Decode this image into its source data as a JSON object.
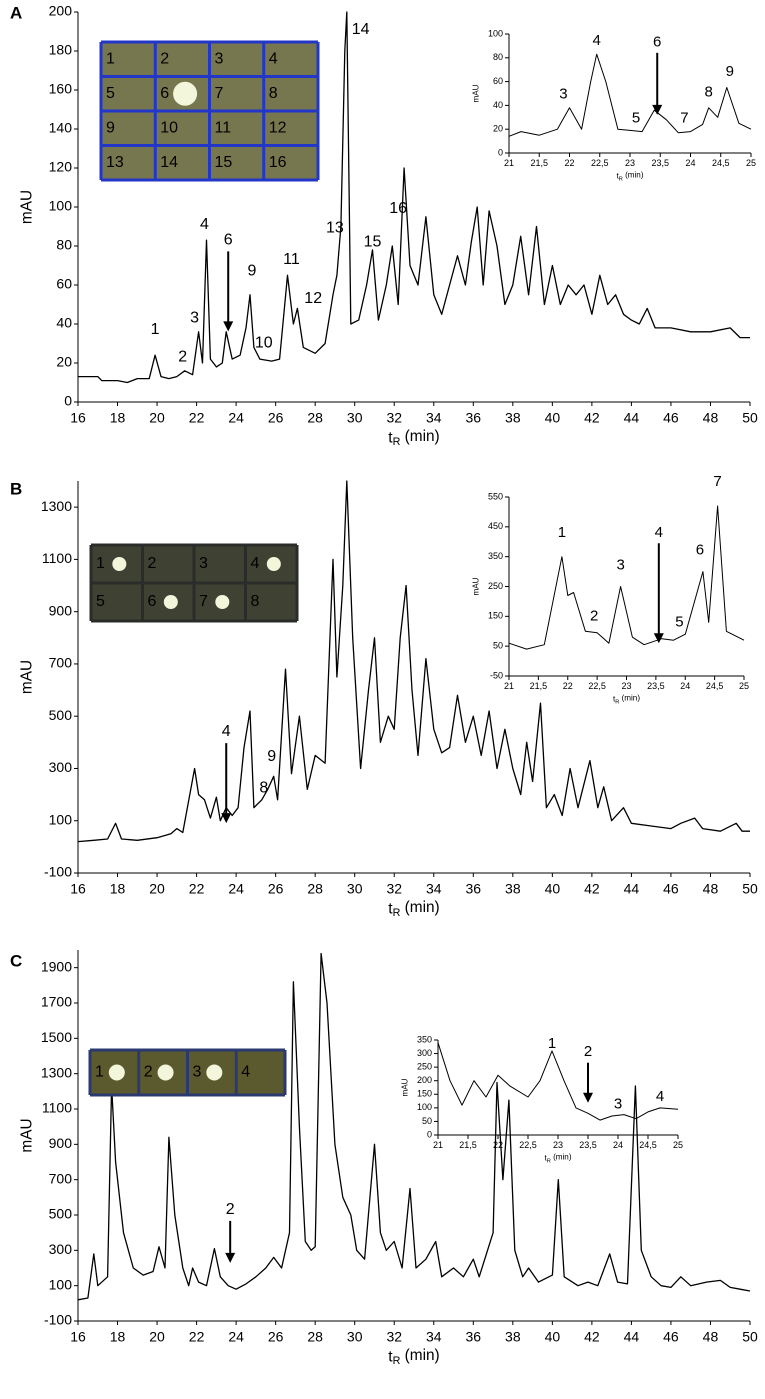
{
  "chart_data": [
    {
      "type": "line",
      "panel": "A",
      "ylabel": "mAU",
      "xlabel": [
        "t",
        "R",
        " (min)"
      ],
      "xlim": [
        16,
        50
      ],
      "ylim": [
        0,
        200
      ],
      "xticks": [
        16,
        18,
        20,
        22,
        24,
        26,
        28,
        30,
        32,
        34,
        36,
        38,
        40,
        42,
        44,
        46,
        48,
        50
      ],
      "yticks": [
        0,
        20,
        40,
        60,
        80,
        100,
        120,
        140,
        160,
        180,
        200
      ],
      "color": "#000000",
      "x": [
        16,
        17,
        17.2,
        18,
        18.5,
        19,
        19.6,
        19.9,
        20.2,
        20.6,
        21,
        21.4,
        21.8,
        22.1,
        22.3,
        22.5,
        22.7,
        23,
        23.3,
        23.5,
        23.8,
        24.2,
        24.5,
        24.7,
        24.9,
        25.2,
        25.8,
        26.2,
        26.6,
        26.9,
        27.1,
        27.4,
        28,
        28.5,
        28.9,
        29.1,
        29.3,
        29.5,
        29.6,
        29.8,
        30.2,
        30.6,
        30.9,
        31.2,
        31.6,
        31.9,
        32.2,
        32.5,
        32.8,
        33.2,
        33.6,
        34,
        34.4,
        34.8,
        35.2,
        35.6,
        35.9,
        36.2,
        36.5,
        36.8,
        37.2,
        37.6,
        38,
        38.4,
        38.8,
        39.2,
        39.6,
        40,
        40.4,
        40.8,
        41.2,
        41.6,
        42,
        42.4,
        42.8,
        43.2,
        43.6,
        44,
        44.4,
        44.8,
        45.2,
        46,
        47,
        48,
        49,
        49.5,
        50
      ],
      "values": [
        13,
        13,
        11,
        11,
        10,
        12,
        12,
        24,
        13,
        12,
        13,
        16,
        14,
        36,
        20,
        83,
        22,
        18,
        20,
        36,
        22,
        24,
        38,
        55,
        28,
        22,
        21,
        22,
        65,
        40,
        48,
        28,
        25,
        30,
        55,
        65,
        90,
        180,
        200,
        40,
        42,
        60,
        78,
        42,
        60,
        80,
        50,
        120,
        70,
        60,
        95,
        55,
        45,
        60,
        75,
        60,
        82,
        100,
        60,
        98,
        80,
        50,
        60,
        85,
        55,
        90,
        50,
        70,
        50,
        60,
        55,
        60,
        45,
        65,
        50,
        55,
        45,
        42,
        40,
        48,
        38,
        38,
        36,
        36,
        38,
        33,
        33
      ],
      "annotations": [
        {
          "text": "1",
          "x": 19.9,
          "y": 37
        },
        {
          "text": "2",
          "x": 21.3,
          "y": 23
        },
        {
          "text": "3",
          "x": 21.9,
          "y": 43
        },
        {
          "text": "4",
          "x": 22.4,
          "y": 91
        },
        {
          "text": "6",
          "x": 23.6,
          "y": 83,
          "arrow": true
        },
        {
          "text": "9",
          "x": 24.8,
          "y": 67
        },
        {
          "text": "10",
          "x": 25.4,
          "y": 30
        },
        {
          "text": "11",
          "x": 26.8,
          "y": 73
        },
        {
          "text": "12",
          "x": 27.9,
          "y": 53
        },
        {
          "text": "13",
          "x": 29,
          "y": 89
        },
        {
          "text": "14",
          "x": 30.3,
          "y": 191
        },
        {
          "text": "15",
          "x": 30.9,
          "y": 82
        },
        {
          "text": "16",
          "x": 32.2,
          "y": 99
        }
      ],
      "plate_labels": [
        "1",
        "2",
        "3",
        "4",
        "5",
        "6",
        "7",
        "8",
        "9",
        "10",
        "11",
        "12",
        "13",
        "14",
        "15",
        "16"
      ],
      "inset": {
        "type": "line",
        "ylabel": "mAU",
        "xlabel": [
          "t",
          "R",
          " (min)"
        ],
        "xlim": [
          21,
          25
        ],
        "ylim": [
          0,
          100
        ],
        "xticks": [
          21,
          {
            "value": 21.5,
            "label": "21,5"
          },
          22,
          {
            "value": 22.5,
            "label": "22,5"
          },
          23,
          {
            "value": 23.5,
            "label": "23,5"
          },
          24,
          {
            "value": 24.5,
            "label": "24,5"
          },
          25
        ],
        "yticks": [
          0,
          20,
          40,
          60,
          80,
          100
        ],
        "color": "#000000",
        "x": [
          21,
          21.2,
          21.5,
          21.8,
          22,
          22.2,
          22.35,
          22.45,
          22.6,
          22.8,
          23,
          23.2,
          23.4,
          23.6,
          23.8,
          24,
          24.2,
          24.3,
          24.45,
          24.6,
          24.8,
          25
        ],
        "values": [
          14,
          18,
          15,
          20,
          38,
          20,
          60,
          83,
          60,
          20,
          19,
          18,
          36,
          28,
          17,
          18,
          24,
          38,
          30,
          55,
          25,
          20
        ],
        "annotations": [
          {
            "text": "3",
            "x": 21.9,
            "y": 49
          },
          {
            "text": "4",
            "x": 22.45,
            "y": 94
          },
          {
            "text": "5",
            "x": 23.1,
            "y": 29
          },
          {
            "text": "6",
            "x": 23.45,
            "y": 93,
            "arrow": true
          },
          {
            "text": "7",
            "x": 23.9,
            "y": 29
          },
          {
            "text": "8",
            "x": 24.3,
            "y": 51
          },
          {
            "text": "9",
            "x": 24.65,
            "y": 68
          }
        ]
      }
    },
    {
      "type": "line",
      "panel": "B",
      "ylabel": "mAU",
      "xlabel": [
        "t",
        "R",
        " (min)"
      ],
      "xlim": [
        16,
        50
      ],
      "ylim": [
        -100,
        1400
      ],
      "xticks": [
        16,
        18,
        20,
        22,
        24,
        26,
        28,
        30,
        32,
        34,
        36,
        38,
        40,
        42,
        44,
        46,
        48,
        50
      ],
      "yticks": [
        -100,
        100,
        300,
        500,
        700,
        900,
        1100,
        1300
      ],
      "color": "#000000",
      "x": [
        16,
        16.8,
        17.5,
        17.9,
        18.2,
        19,
        20,
        20.7,
        21,
        21.3,
        21.9,
        22.1,
        22.4,
        22.7,
        23,
        23.2,
        23.5,
        23.8,
        24.1,
        24.4,
        24.7,
        24.9,
        25.3,
        25.6,
        25.9,
        26.1,
        26.5,
        26.8,
        27.2,
        27.6,
        28,
        28.5,
        28.9,
        29.1,
        29.4,
        29.6,
        29.9,
        30.3,
        30.7,
        31,
        31.3,
        31.7,
        32,
        32.3,
        32.6,
        32.9,
        33.2,
        33.6,
        34,
        34.4,
        34.8,
        35.2,
        35.6,
        36,
        36.4,
        36.8,
        37.2,
        37.6,
        38,
        38.4,
        38.7,
        39,
        39.4,
        39.7,
        40.1,
        40.5,
        40.9,
        41.3,
        41.9,
        42.3,
        42.6,
        43,
        43.6,
        44,
        45,
        46,
        46.5,
        47.2,
        47.6,
        48.5,
        49.3,
        49.6,
        50
      ],
      "values": [
        20,
        25,
        30,
        90,
        30,
        25,
        35,
        50,
        70,
        55,
        300,
        200,
        180,
        110,
        190,
        100,
        150,
        120,
        150,
        380,
        520,
        150,
        180,
        220,
        270,
        180,
        680,
        280,
        500,
        220,
        350,
        320,
        1100,
        650,
        1000,
        1400,
        800,
        300,
        600,
        800,
        400,
        500,
        450,
        800,
        1000,
        600,
        350,
        720,
        450,
        360,
        380,
        580,
        400,
        500,
        350,
        520,
        300,
        450,
        300,
        200,
        400,
        250,
        550,
        150,
        200,
        120,
        300,
        150,
        330,
        150,
        230,
        100,
        150,
        90,
        80,
        70,
        90,
        110,
        70,
        60,
        90,
        60,
        60
      ],
      "annotations": [
        {
          "text": "4",
          "x": 23.5,
          "y": 440,
          "arrow": true
        },
        {
          "text": "8",
          "x": 25.4,
          "y": 225
        },
        {
          "text": "9",
          "x": 25.8,
          "y": 345
        }
      ],
      "plate_labels": [
        "1",
        "2",
        "3",
        "4",
        "5",
        "6",
        "7",
        "8"
      ],
      "inset": {
        "type": "line",
        "ylabel": "mAU",
        "xlabel": [
          "t",
          "R",
          " (min)"
        ],
        "xlim": [
          21,
          25
        ],
        "ylim": [
          -50,
          550
        ],
        "xticks": [
          21,
          {
            "value": 21.5,
            "label": "21,5"
          },
          22,
          {
            "value": 22.5,
            "label": "22,5"
          },
          23,
          {
            "value": 23.5,
            "label": "23,5"
          },
          24,
          {
            "value": 24.5,
            "label": "24,5"
          },
          25
        ],
        "yticks": [
          -50,
          50,
          150,
          250,
          350,
          450,
          550
        ],
        "color": "#000000",
        "x": [
          21,
          21.3,
          21.6,
          21.9,
          22,
          22.1,
          22.3,
          22.5,
          22.7,
          22.9,
          23.1,
          23.3,
          23.6,
          23.8,
          24,
          24.3,
          24.4,
          24.55,
          24.7,
          25
        ],
        "values": [
          60,
          40,
          55,
          350,
          220,
          230,
          100,
          95,
          60,
          250,
          80,
          55,
          75,
          70,
          90,
          300,
          130,
          520,
          100,
          70
        ],
        "annotations": [
          {
            "text": "1",
            "x": 21.9,
            "y": 430
          },
          {
            "text": "2",
            "x": 22.45,
            "y": 150
          },
          {
            "text": "3",
            "x": 22.9,
            "y": 320
          },
          {
            "text": "4",
            "x": 23.55,
            "y": 430,
            "arrow": true
          },
          {
            "text": "5",
            "x": 23.9,
            "y": 130
          },
          {
            "text": "6",
            "x": 24.25,
            "y": 370
          },
          {
            "text": "7",
            "x": 24.55,
            "y": 600
          }
        ]
      }
    },
    {
      "type": "line",
      "panel": "C",
      "ylabel": "mAU",
      "xlabel": [
        "t",
        "R",
        " (min)"
      ],
      "xlim": [
        16,
        50
      ],
      "ylim": [
        -100,
        2000
      ],
      "xticks": [
        16,
        18,
        20,
        22,
        24,
        26,
        28,
        30,
        32,
        34,
        36,
        38,
        40,
        42,
        44,
        46,
        48,
        50
      ],
      "yticks": [
        -100,
        100,
        300,
        500,
        700,
        900,
        1100,
        1300,
        1500,
        1700,
        1900
      ],
      "color": "#000000",
      "x": [
        16,
        16.5,
        16.8,
        17,
        17.5,
        17.7,
        17.9,
        18.3,
        18.8,
        19.3,
        19.8,
        20.1,
        20.4,
        20.6,
        20.9,
        21.3,
        21.6,
        21.8,
        22.1,
        22.5,
        22.9,
        23.2,
        23.6,
        24,
        24.5,
        25,
        25.5,
        25.9,
        26.3,
        26.7,
        26.9,
        27.2,
        27.5,
        27.8,
        28,
        28.3,
        28.6,
        29,
        29.4,
        29.8,
        30.1,
        30.5,
        31,
        31.3,
        31.6,
        32,
        32.4,
        32.8,
        33.1,
        33.6,
        34.1,
        34.4,
        35,
        35.5,
        36,
        36.3,
        37,
        37.2,
        37.5,
        37.8,
        38.1,
        38.5,
        38.8,
        39.3,
        40,
        40.3,
        40.6,
        41.3,
        41.8,
        42.3,
        42.9,
        43.3,
        43.8,
        44.2,
        44.5,
        45,
        45.5,
        46,
        46.5,
        47,
        47.8,
        48.5,
        49,
        49.5,
        50
      ],
      "values": [
        20,
        30,
        280,
        100,
        150,
        1230,
        800,
        400,
        200,
        160,
        180,
        320,
        200,
        940,
        500,
        200,
        100,
        200,
        120,
        100,
        310,
        150,
        100,
        80,
        110,
        150,
        200,
        260,
        200,
        400,
        1820,
        1000,
        350,
        300,
        320,
        1980,
        1700,
        900,
        600,
        500,
        300,
        250,
        900,
        400,
        300,
        350,
        200,
        650,
        200,
        250,
        350,
        150,
        200,
        150,
        250,
        150,
        400,
        1250,
        700,
        1150,
        300,
        150,
        200,
        120,
        160,
        700,
        150,
        100,
        120,
        100,
        280,
        120,
        110,
        1230,
        300,
        150,
        100,
        90,
        150,
        100,
        120,
        130,
        90,
        80,
        70
      ],
      "annotations": [
        {
          "text": "2",
          "x": 23.7,
          "y": 530,
          "arrow": true
        }
      ],
      "plate_labels": [
        "1",
        "2",
        "3",
        "4"
      ],
      "inset": {
        "type": "line",
        "ylabel": "mAU",
        "xlabel": [
          "t",
          "R",
          " (min)"
        ],
        "xlim": [
          21,
          25
        ],
        "ylim": [
          0,
          350
        ],
        "xticks": [
          21,
          {
            "value": 21.5,
            "label": "21,5"
          },
          22,
          {
            "value": 22.5,
            "label": "22,5"
          },
          23,
          {
            "value": 23.5,
            "label": "23,5"
          },
          24,
          {
            "value": 24.5,
            "label": "24,5"
          },
          25
        ],
        "yticks": [
          0,
          50,
          100,
          150,
          200,
          250,
          300,
          350
        ],
        "color": "#000000",
        "x": [
          21,
          21.2,
          21.4,
          21.6,
          21.8,
          22,
          22.2,
          22.5,
          22.7,
          22.9,
          23.1,
          23.3,
          23.5,
          23.7,
          23.9,
          24.1,
          24.3,
          24.5,
          24.7,
          25
        ],
        "values": [
          340,
          200,
          110,
          200,
          140,
          220,
          180,
          140,
          200,
          310,
          200,
          100,
          80,
          55,
          70,
          75,
          60,
          85,
          100,
          95
        ],
        "annotations": [
          {
            "text": "1",
            "x": 22.9,
            "y": 335
          },
          {
            "text": "2",
            "x": 23.5,
            "y": 305,
            "arrow": true
          },
          {
            "text": "3",
            "x": 24,
            "y": 112
          },
          {
            "text": "4",
            "x": 24.7,
            "y": 140
          }
        ]
      }
    }
  ]
}
